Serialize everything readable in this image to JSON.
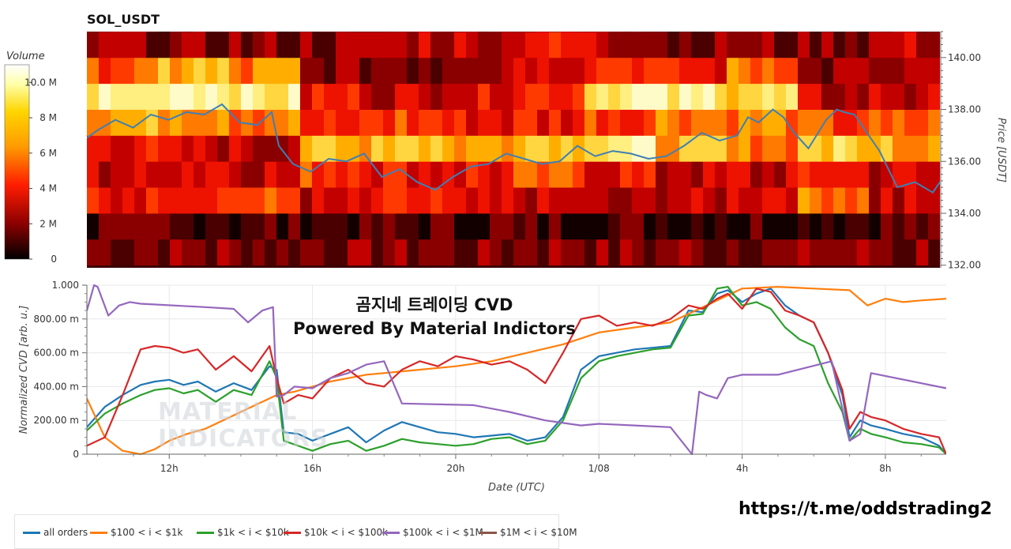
{
  "header": {
    "title": "SOL_USDT"
  },
  "overlay": {
    "line1": "곰지네 트레이딩 CVD",
    "line2": "Powered By Material Indictors"
  },
  "watermark": {
    "line1": "MATERIAL",
    "line2": "INDICATORS"
  },
  "footer": {
    "link": "https://t.me/oddstrading2"
  },
  "chart_data": [
    {
      "type": "heatmap",
      "name": "volume-heatmap",
      "colorbar": {
        "title": "Volume",
        "ticks": [
          0,
          2,
          4,
          6,
          8,
          10
        ],
        "tick_labels": [
          "0",
          "2 M",
          "4 M",
          "6 M",
          "8 M",
          "10.0 M"
        ],
        "range": [
          0,
          11
        ],
        "colors": [
          "#000000",
          "#b00000",
          "#ff2000",
          "#ff9b00",
          "#ffd500",
          "#ffffb0",
          "#ffffff"
        ]
      },
      "y2label": "Price [USDT]",
      "y2ticks": [
        132,
        134,
        136,
        138,
        140
      ],
      "y2tick_labels": [
        "132.00",
        "134.00",
        "136.00",
        "138.00",
        "140.00"
      ],
      "ylim": [
        131.9,
        141.0
      ],
      "price_bins": [
        132,
        133,
        134,
        135,
        136,
        137,
        138,
        139,
        140,
        141
      ],
      "levels_by_bin": [
        [
          2,
          2,
          2,
          2,
          2,
          2,
          2,
          2,
          2,
          2,
          2,
          2
        ],
        [
          1,
          1,
          1,
          1,
          1,
          1,
          1,
          1,
          1,
          1,
          1,
          1
        ],
        [
          4,
          5,
          5,
          3,
          4,
          3,
          3,
          2,
          3,
          4,
          6,
          3
        ],
        [
          3,
          4,
          3,
          5,
          4,
          4,
          5,
          4,
          3,
          3,
          4,
          3
        ],
        [
          4,
          3,
          3,
          7,
          8,
          7,
          8,
          9,
          7,
          6,
          8,
          7
        ],
        [
          7,
          7,
          6,
          4,
          5,
          4,
          4,
          5,
          6,
          6,
          5,
          5
        ],
        [
          9,
          10,
          9,
          4,
          3,
          4,
          5,
          9,
          9,
          8,
          3,
          3
        ],
        [
          5,
          7,
          6,
          2,
          2,
          3,
          4,
          5,
          4,
          6,
          2,
          2
        ],
        [
          2,
          2,
          2,
          2,
          3,
          3,
          4,
          3,
          2,
          2,
          2,
          3
        ],
        [
          1,
          1,
          1,
          1,
          1,
          1,
          1,
          1,
          1,
          1,
          1,
          1
        ]
      ],
      "series": [
        {
          "name": "Price",
          "color": "#3f7fb4",
          "x": [
            9.7,
            10.0,
            10.5,
            11.0,
            11.5,
            12.0,
            12.5,
            13.0,
            13.5,
            14.0,
            14.5,
            14.9,
            15.1,
            15.5,
            16.0,
            16.5,
            17.0,
            17.5,
            18.0,
            18.5,
            19.0,
            19.5,
            20.0,
            20.5,
            21.0,
            21.5,
            22.0,
            22.5,
            23.0,
            23.5,
            24.0,
            24.5,
            25.0,
            25.5,
            26.0,
            26.5,
            27.0,
            27.5,
            28.0,
            28.3,
            28.6,
            29.0,
            29.3,
            29.6,
            30.0,
            30.5,
            30.8,
            31.0,
            31.3,
            31.6,
            32.0,
            32.5,
            33.0,
            33.5,
            33.7
          ],
          "values": [
            136.9,
            137.2,
            137.6,
            137.3,
            137.8,
            137.6,
            137.9,
            137.8,
            138.2,
            137.5,
            137.4,
            137.9,
            136.6,
            135.9,
            135.6,
            136.1,
            136.0,
            136.3,
            135.4,
            135.7,
            135.2,
            134.9,
            135.4,
            135.8,
            135.9,
            136.3,
            136.1,
            135.9,
            136.0,
            136.6,
            136.2,
            136.4,
            136.3,
            136.1,
            136.2,
            136.6,
            137.1,
            136.8,
            137.0,
            137.7,
            137.5,
            138.0,
            137.7,
            137.1,
            136.5,
            137.6,
            138.0,
            137.9,
            137.8,
            137.2,
            136.4,
            135.0,
            135.2,
            134.8,
            135.2
          ]
        }
      ]
    },
    {
      "type": "line",
      "name": "cvd-chart",
      "xlabel": "Date (UTC)",
      "ylabel": "Normalized CVD [arb. u.]",
      "xlim": [
        9.7,
        33.7
      ],
      "ylim": [
        0,
        1.0
      ],
      "xticks": [
        12,
        16,
        20,
        24,
        28,
        32
      ],
      "xtick_labels": [
        "12h",
        "16h",
        "20h",
        "1/08",
        "4h",
        "8h"
      ],
      "yticks": [
        0,
        0.2,
        0.4,
        0.6,
        0.8,
        1.0
      ],
      "ytick_labels": [
        "0",
        "200.00 m",
        "400.00 m",
        "600.00 m",
        "800.00 m",
        "1.000"
      ],
      "grid": true,
      "legend": "bottom",
      "series": [
        {
          "name": "all orders",
          "color": "#1f77b4",
          "x": [
            9.7,
            10.2,
            10.7,
            11.2,
            11.6,
            12.0,
            12.4,
            12.8,
            13.3,
            13.8,
            14.3,
            14.8,
            15.0,
            15.2,
            15.6,
            16.0,
            16.5,
            17.0,
            17.5,
            18.0,
            18.5,
            19.0,
            19.5,
            20.0,
            20.5,
            21.0,
            21.5,
            22.0,
            22.5,
            23.0,
            23.5,
            24.0,
            24.5,
            25.0,
            25.5,
            26.0,
            26.5,
            26.9,
            27.3,
            27.6,
            28.0,
            28.4,
            28.8,
            29.2,
            29.6,
            30.0,
            30.4,
            30.8,
            31.0,
            31.3,
            31.6,
            32.0,
            32.5,
            33.0,
            33.5,
            33.7
          ],
          "values": [
            0.16,
            0.28,
            0.35,
            0.41,
            0.43,
            0.44,
            0.41,
            0.43,
            0.37,
            0.42,
            0.38,
            0.52,
            0.5,
            0.13,
            0.12,
            0.08,
            0.12,
            0.16,
            0.07,
            0.14,
            0.19,
            0.16,
            0.13,
            0.12,
            0.1,
            0.11,
            0.12,
            0.08,
            0.1,
            0.22,
            0.5,
            0.58,
            0.6,
            0.62,
            0.63,
            0.64,
            0.85,
            0.84,
            0.95,
            0.97,
            0.9,
            0.95,
            0.98,
            0.88,
            0.82,
            0.78,
            0.6,
            0.35,
            0.1,
            0.2,
            0.17,
            0.15,
            0.12,
            0.1,
            0.05,
            0.0
          ]
        },
        {
          "name": "$100 < i < $1k",
          "color": "#ff7f0e",
          "x": [
            9.7,
            10.2,
            10.7,
            11.2,
            11.6,
            12.0,
            12.5,
            13.0,
            13.5,
            14.0,
            14.5,
            15.0,
            15.5,
            16.0,
            16.5,
            17.0,
            17.5,
            18.0,
            19.0,
            20.0,
            21.0,
            22.0,
            23.0,
            24.0,
            25.0,
            26.0,
            27.0,
            28.0,
            29.0,
            30.0,
            31.0,
            31.5,
            32.0,
            32.5,
            33.0,
            33.7
          ],
          "values": [
            0.33,
            0.1,
            0.02,
            0.0,
            0.03,
            0.08,
            0.12,
            0.15,
            0.2,
            0.25,
            0.3,
            0.35,
            0.37,
            0.4,
            0.43,
            0.45,
            0.47,
            0.48,
            0.5,
            0.52,
            0.55,
            0.6,
            0.65,
            0.72,
            0.75,
            0.78,
            0.88,
            0.98,
            0.99,
            0.98,
            0.97,
            0.88,
            0.92,
            0.9,
            0.91,
            0.92
          ]
        },
        {
          "name": "$1k < i < $10k",
          "color": "#2ca02c",
          "x": [
            9.7,
            10.2,
            10.7,
            11.2,
            11.6,
            12.0,
            12.4,
            12.8,
            13.3,
            13.8,
            14.3,
            14.8,
            15.0,
            15.2,
            15.6,
            16.0,
            16.5,
            17.0,
            17.5,
            18.0,
            18.5,
            19.0,
            19.5,
            20.0,
            20.5,
            21.0,
            21.5,
            22.0,
            22.5,
            23.0,
            23.5,
            24.0,
            24.5,
            25.0,
            25.5,
            26.0,
            26.5,
            26.9,
            27.3,
            27.6,
            28.0,
            28.4,
            28.8,
            29.2,
            29.6,
            30.0,
            30.4,
            30.8,
            31.0,
            31.3,
            31.6,
            32.0,
            32.5,
            33.0,
            33.5,
            33.7
          ],
          "values": [
            0.14,
            0.24,
            0.3,
            0.35,
            0.38,
            0.39,
            0.36,
            0.38,
            0.31,
            0.38,
            0.35,
            0.55,
            0.45,
            0.08,
            0.05,
            0.02,
            0.06,
            0.08,
            0.02,
            0.05,
            0.09,
            0.07,
            0.06,
            0.05,
            0.06,
            0.09,
            0.1,
            0.06,
            0.08,
            0.2,
            0.45,
            0.55,
            0.58,
            0.6,
            0.62,
            0.63,
            0.82,
            0.83,
            0.98,
            0.99,
            0.88,
            0.9,
            0.86,
            0.75,
            0.68,
            0.64,
            0.42,
            0.25,
            0.08,
            0.15,
            0.12,
            0.1,
            0.07,
            0.06,
            0.04,
            0.0
          ]
        },
        {
          "name": "$10k < i < $100k",
          "color": "#d62728",
          "x": [
            9.7,
            10.2,
            10.7,
            11.2,
            11.6,
            12.0,
            12.4,
            12.8,
            13.3,
            13.8,
            14.3,
            14.8,
            15.0,
            15.2,
            15.6,
            16.0,
            16.5,
            17.0,
            17.5,
            18.0,
            18.5,
            19.0,
            19.5,
            20.0,
            20.5,
            21.0,
            21.5,
            22.0,
            22.5,
            23.0,
            23.5,
            24.0,
            24.5,
            25.0,
            25.5,
            26.0,
            26.5,
            26.9,
            27.3,
            27.6,
            28.0,
            28.4,
            28.8,
            29.2,
            29.6,
            30.0,
            30.4,
            30.8,
            31.0,
            31.3,
            31.6,
            32.0,
            32.5,
            33.0,
            33.5,
            33.7
          ],
          "values": [
            0.05,
            0.1,
            0.35,
            0.62,
            0.64,
            0.63,
            0.6,
            0.62,
            0.5,
            0.58,
            0.49,
            0.64,
            0.45,
            0.3,
            0.35,
            0.33,
            0.45,
            0.5,
            0.42,
            0.4,
            0.5,
            0.55,
            0.52,
            0.58,
            0.56,
            0.53,
            0.55,
            0.5,
            0.42,
            0.6,
            0.8,
            0.82,
            0.76,
            0.78,
            0.76,
            0.8,
            0.88,
            0.86,
            0.92,
            0.95,
            0.86,
            0.98,
            0.96,
            0.85,
            0.82,
            0.78,
            0.6,
            0.38,
            0.15,
            0.25,
            0.22,
            0.2,
            0.15,
            0.12,
            0.1,
            0.0
          ]
        },
        {
          "name": "$100k < i < $1M",
          "color": "#9467bd",
          "x": [
            9.7,
            9.9,
            10.0,
            10.3,
            10.6,
            10.9,
            11.2,
            13.0,
            13.8,
            14.2,
            14.6,
            14.9,
            15.0,
            15.2,
            15.5,
            16.0,
            16.5,
            17.0,
            17.5,
            18.0,
            18.5,
            20.5,
            21.5,
            22.5,
            23.5,
            24.0,
            25.0,
            26.0,
            26.6,
            26.8,
            27.0,
            27.3,
            27.6,
            28.0,
            29.0,
            30.5,
            31.0,
            31.3,
            31.6,
            33.7
          ],
          "values": [
            0.85,
            1.0,
            0.99,
            0.82,
            0.88,
            0.9,
            0.89,
            0.87,
            0.86,
            0.78,
            0.85,
            0.87,
            0.34,
            0.35,
            0.4,
            0.39,
            0.45,
            0.48,
            0.53,
            0.55,
            0.3,
            0.29,
            0.25,
            0.2,
            0.17,
            0.18,
            0.17,
            0.16,
            0.0,
            0.37,
            0.35,
            0.33,
            0.45,
            0.47,
            0.47,
            0.55,
            0.08,
            0.12,
            0.48,
            0.39
          ]
        },
        {
          "name": "$1M < i < $10M",
          "color": "#8c564b",
          "x": [],
          "values": []
        }
      ]
    }
  ]
}
